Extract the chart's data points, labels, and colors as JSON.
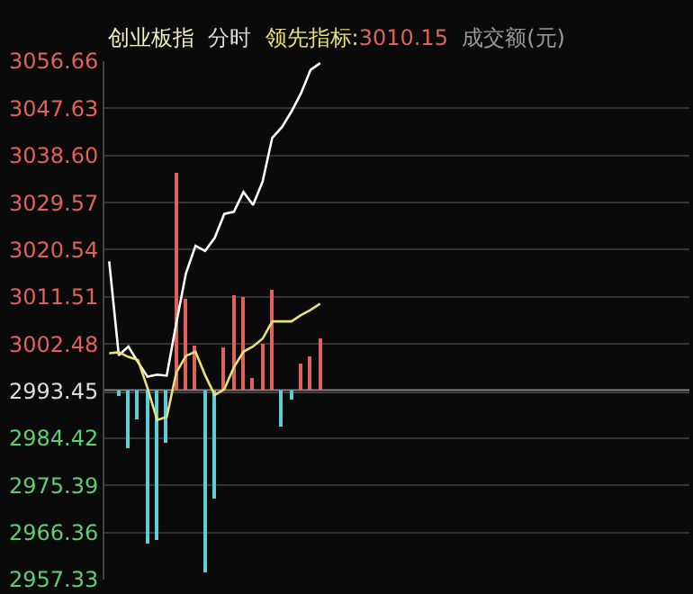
{
  "chart_data": {
    "type": "bar",
    "title": "创业板指",
    "subtitle": "分时",
    "annotations": [
      "领先指标:3010.15",
      "成交额(元)"
    ],
    "categories": [
      null,
      null,
      null,
      null,
      null,
      null,
      null,
      null,
      null,
      null,
      null,
      null,
      null,
      null,
      null,
      null,
      null,
      null,
      null,
      null,
      null,
      null,
      null,
      null,
      null,
      null,
      null,
      null,
      null,
      null,
      null,
      null,
      null,
      null,
      null,
      null,
      null,
      null,
      null,
      null,
      null,
      null,
      null,
      null,
      null,
      null,
      null,
      null,
      null,
      null,
      null,
      null,
      null,
      null,
      null,
      null,
      null,
      null,
      null,
      null,
      null
    ],
    "ylim": [
      2957.33,
      3056.66
    ],
    "yticks": [
      3056.66,
      3047.63,
      {
        "value": 3038.6,
        "label": "3038.60"
      },
      3029.57,
      3020.54,
      3011.51,
      3002.48,
      2993.45,
      2984.42,
      2975.39,
      2966.36,
      2957.33
    ],
    "tick_labels": "y",
    "grid": "y",
    "ref_lines": [
      {
        "axis": "y",
        "value": 2993.45,
        "color": "#8a8a8a"
      }
    ],
    "series": [
      {
        "base": [
          null,
          2993.45,
          2993.45,
          2993.45,
          2993.45,
          2993.45,
          2993.45,
          2993.45,
          2993.45,
          2993.45,
          2993.45,
          2993.45,
          2993.45,
          2993.45,
          2993.45,
          2993.45,
          2993.45,
          2993.45,
          2993.45,
          2993.45,
          2993.45,
          2993.45,
          2993.45,
          null,
          null,
          null,
          null,
          null,
          null,
          null,
          null,
          null,
          null,
          null,
          null,
          null,
          null,
          null,
          null,
          null,
          null,
          null,
          null,
          null,
          null,
          null,
          null,
          null,
          null,
          null,
          null,
          null,
          null,
          null,
          null,
          null,
          null,
          null,
          null,
          null,
          null
        ],
        "values": [
          null,
          -1.1,
          -10.9,
          -5.5,
          -29.2,
          -28.7,
          -10.0,
          41.9,
          17.8,
          8.8,
          -34.7,
          -20.6,
          8.3,
          18.4,
          18.0,
          2.5,
          8.9,
          19.3,
          -6.7,
          -1.7,
          5.3,
          6.7,
          10.0,
          null,
          null,
          null,
          null,
          null,
          null,
          null,
          null,
          null,
          null,
          null,
          null,
          null,
          null,
          null,
          null,
          null,
          null,
          null,
          null,
          null,
          null,
          null,
          null,
          null,
          null,
          null,
          null,
          null,
          null,
          null,
          null,
          null,
          null,
          null,
          null,
          null,
          null
        ],
        "colors": [
          "#5ccfd6",
          "#5ccfd6",
          "#5ccfd6",
          "#5ccfd6",
          "#5ccfd6",
          "#5ccfd6",
          "#5ccfd6",
          "#e0625a",
          "#e0625a",
          "#e0625a",
          "#5ccfd6",
          "#5ccfd6",
          "#e0625a",
          "#e0625a",
          "#e0625a",
          "#e0625a",
          "#e0625a",
          "#e0625a",
          "#5ccfd6",
          "#5ccfd6",
          "#e0625a",
          "#e0625a",
          "#e0625a",
          null,
          null,
          null,
          null,
          null,
          null,
          null,
          null,
          null,
          null,
          null,
          null,
          null,
          null,
          null,
          null,
          null,
          null,
          null,
          null,
          null,
          null,
          null,
          null,
          null,
          null,
          null,
          null,
          null,
          null,
          null,
          null,
          null,
          null,
          null,
          null,
          null,
          null
        ]
      },
      {
        "type": "line",
        "color": "#ffffff",
        "values": [
          3018.3,
          3000.3,
          3002.0,
          2999.0,
          2996.2,
          2996.6,
          2996.4,
          3006.5,
          3016.0,
          3021.3,
          3020.3,
          3022.8,
          3027.4,
          3027.8,
          3031.6,
          3029.1,
          3033.6,
          3042.0,
          3044.0,
          3047.0,
          3050.5,
          3055.0,
          3056.3,
          null,
          null,
          null,
          null,
          null,
          null,
          null,
          null,
          null,
          null,
          null,
          null,
          null,
          null,
          null,
          null,
          null,
          null,
          null,
          null,
          null,
          null,
          null,
          null,
          null,
          null,
          null,
          null,
          null,
          null,
          null,
          null,
          null,
          null,
          null,
          null,
          null,
          null
        ]
      },
      {
        "type": "line",
        "color": "#e8e07a",
        "values": [
          3000.7,
          3000.9,
          3000.0,
          2999.4,
          2994.0,
          2987.9,
          2988.5,
          2997.0,
          3000.2,
          3001.0,
          2996.5,
          2992.7,
          2993.8,
          2998.0,
          3001.0,
          3002.0,
          3003.5,
          3006.8,
          3006.8,
          3006.8,
          3008.0,
          3009.0,
          3010.2,
          null,
          null,
          null,
          null,
          null,
          null,
          null,
          null,
          null,
          null,
          null,
          null,
          null,
          null,
          null,
          null,
          null,
          null,
          null,
          null,
          null,
          null,
          null,
          null,
          null,
          null,
          null,
          null,
          null,
          null,
          null,
          null,
          null,
          null,
          null,
          null,
          null,
          null
        ]
      }
    ]
  }
}
